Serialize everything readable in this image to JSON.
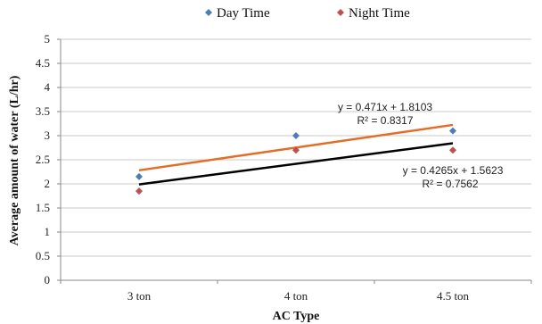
{
  "chart_data": {
    "type": "scatter",
    "title": "",
    "xlabel": "AC Type",
    "ylabel": "Average amount of water (L/hr)",
    "categories": [
      "3 ton",
      "4 ton",
      "4.5 ton"
    ],
    "ylim": [
      0,
      5
    ],
    "yticks": [
      "0",
      "0.5",
      "1",
      "1.5",
      "2",
      "2.5",
      "3",
      "3.5",
      "4",
      "4.5",
      "5"
    ],
    "yticks_values": [
      0,
      0.5,
      1,
      1.5,
      2,
      2.5,
      3,
      3.5,
      4,
      4.5,
      5
    ],
    "grid": true,
    "legend_position": "top",
    "series": [
      {
        "name": "Day Time",
        "values": [
          2.15,
          3.0,
          3.1
        ],
        "color": "#4a7ebb",
        "marker": "diamond"
      },
      {
        "name": "Night Time",
        "values": [
          1.85,
          2.7,
          2.7
        ],
        "color": "#c0504d",
        "marker": "diamond"
      }
    ],
    "trendlines": [
      {
        "slope": 0.471,
        "intercept": 1.8103,
        "color": "#e46c24",
        "equation": "y = 0.471x + 1.8103",
        "r2": "R² = 0.8317"
      },
      {
        "slope": 0.4265,
        "intercept": 1.5623,
        "color": "#000000",
        "equation": "y = 0.4265x + 1.5623",
        "r2": "R² = 0.7562"
      }
    ]
  }
}
